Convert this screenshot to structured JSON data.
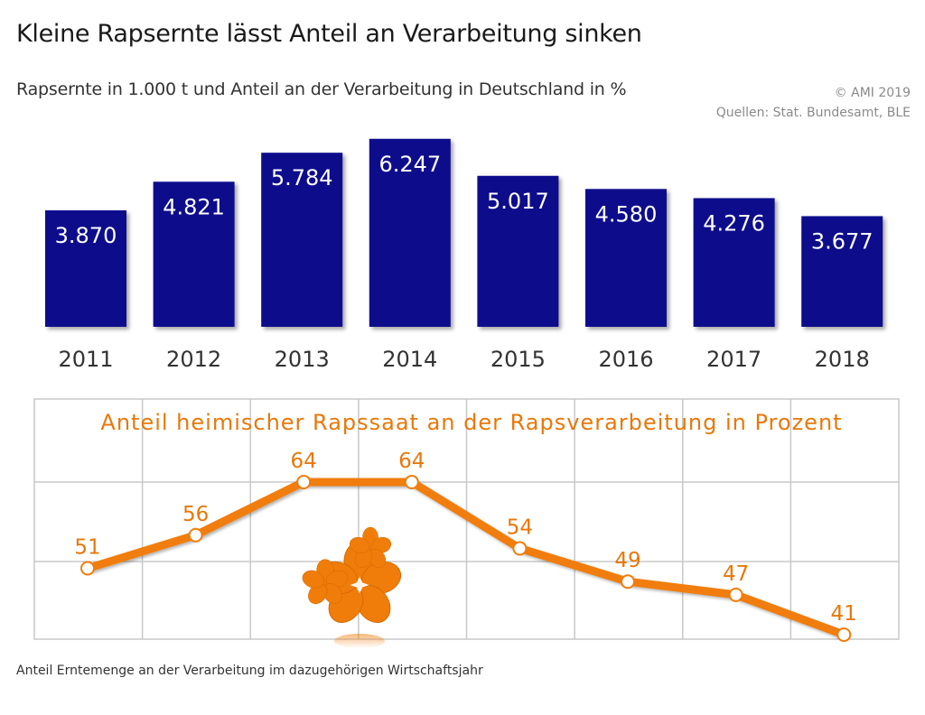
{
  "header": {
    "title": "Kleine Rapsernte lässt Anteil an Verarbeitung sinken",
    "subtitle": "Rapsernte in 1.000 t und Anteil an der Verarbeitung in Deutschland in %",
    "copyright": "© AMI 2019",
    "sources": "Quellen: Stat. Bundesamt, BLE"
  },
  "footer": {
    "note": "Anteil Erntemenge an der Verarbeitung im dazugehörigen Wirtschaftsjahr"
  },
  "colors": {
    "bar": "#0a0a8c",
    "line": "#f07d0a",
    "label_orange": "#e8780a",
    "grid": "#c8c8c8"
  },
  "chart_data": [
    {
      "type": "bar",
      "title": "Rapsernte in 1.000 t",
      "categories": [
        "2011",
        "2012",
        "2013",
        "2014",
        "2015",
        "2016",
        "2017",
        "2018"
      ],
      "values": [
        3870,
        4821,
        5784,
        6247,
        5017,
        4580,
        4276,
        3677
      ],
      "value_labels": [
        "3.870",
        "4.821",
        "5.784",
        "6.247",
        "5.017",
        "4.580",
        "4.276",
        "3.677"
      ],
      "ylim": [
        0,
        6500
      ],
      "grid": false
    },
    {
      "type": "line",
      "title": "Anteil heimischer Rapssaat an der Rapsverarbeitung in Prozent",
      "categories": [
        "2011",
        "2012",
        "2013",
        "2014",
        "2015",
        "2016",
        "2017",
        "2018"
      ],
      "values": [
        51,
        56,
        64,
        64,
        54,
        49,
        47,
        41
      ],
      "value_labels": [
        "51",
        "56",
        "64",
        "64",
        "54",
        "49",
        "47",
        "41"
      ],
      "ylim": [
        40,
        70
      ],
      "grid": true
    }
  ]
}
